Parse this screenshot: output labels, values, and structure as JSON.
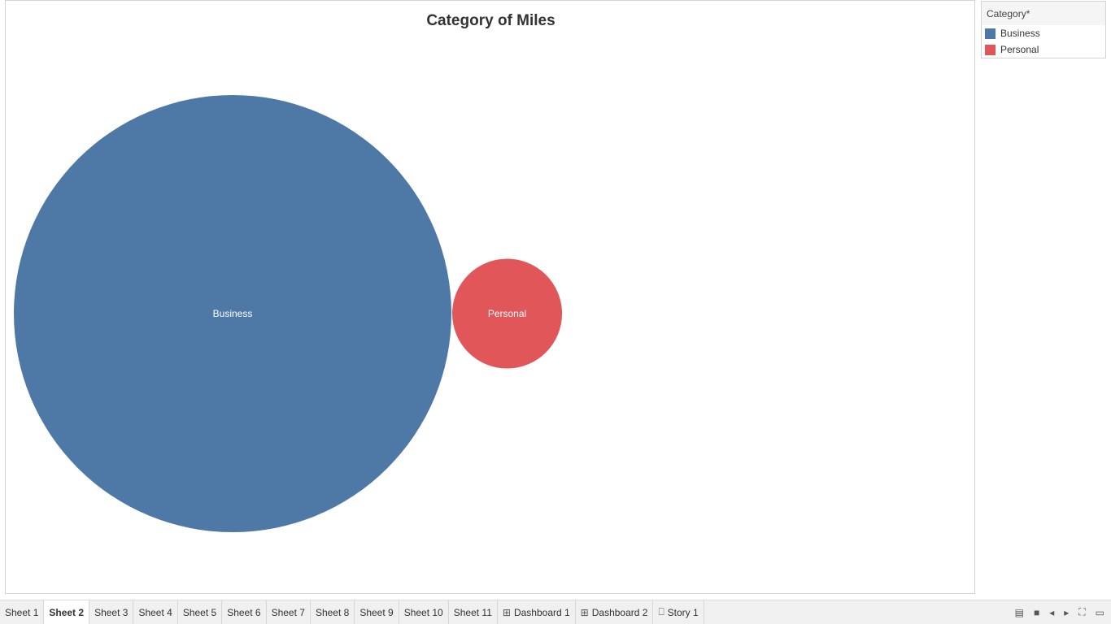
{
  "chart_data": {
    "type": "packed-bubble",
    "title": "Category of Miles",
    "legend_title": "Category*",
    "legend_position": "top-right",
    "bubbles": [
      {
        "category": "Business",
        "color": "#4e79a7",
        "relative_size": 1.0
      },
      {
        "category": "Personal",
        "color": "#e15759",
        "relative_size": 0.063
      }
    ]
  },
  "tabs": [
    {
      "label": "Sheet 1",
      "active": false,
      "icon": ""
    },
    {
      "label": "Sheet 2",
      "active": true,
      "icon": ""
    },
    {
      "label": "Sheet 3",
      "active": false,
      "icon": ""
    },
    {
      "label": "Sheet 4",
      "active": false,
      "icon": ""
    },
    {
      "label": "Sheet 5",
      "active": false,
      "icon": ""
    },
    {
      "label": "Sheet 6",
      "active": false,
      "icon": ""
    },
    {
      "label": "Sheet 7",
      "active": false,
      "icon": ""
    },
    {
      "label": "Sheet 8",
      "active": false,
      "icon": ""
    },
    {
      "label": "Sheet 9",
      "active": false,
      "icon": ""
    },
    {
      "label": "Sheet 10",
      "active": false,
      "icon": ""
    },
    {
      "label": "Sheet 11",
      "active": false,
      "icon": ""
    },
    {
      "label": "Dashboard 1",
      "active": false,
      "icon": "dashboard-icon"
    },
    {
      "label": "Dashboard 2",
      "active": false,
      "icon": "dashboard-icon"
    },
    {
      "label": "Story 1",
      "active": false,
      "icon": "story-icon"
    }
  ],
  "controls": [
    {
      "name": "show-filmstrip-icon",
      "glyph": "▤"
    },
    {
      "name": "show-tabs-icon",
      "glyph": "■"
    },
    {
      "name": "prev-sheet-icon",
      "glyph": "◂"
    },
    {
      "name": "next-sheet-icon",
      "glyph": "▸"
    },
    {
      "name": "fullscreen-icon",
      "glyph": "⛶"
    },
    {
      "name": "presentation-mode-icon",
      "glyph": "▭"
    }
  ]
}
